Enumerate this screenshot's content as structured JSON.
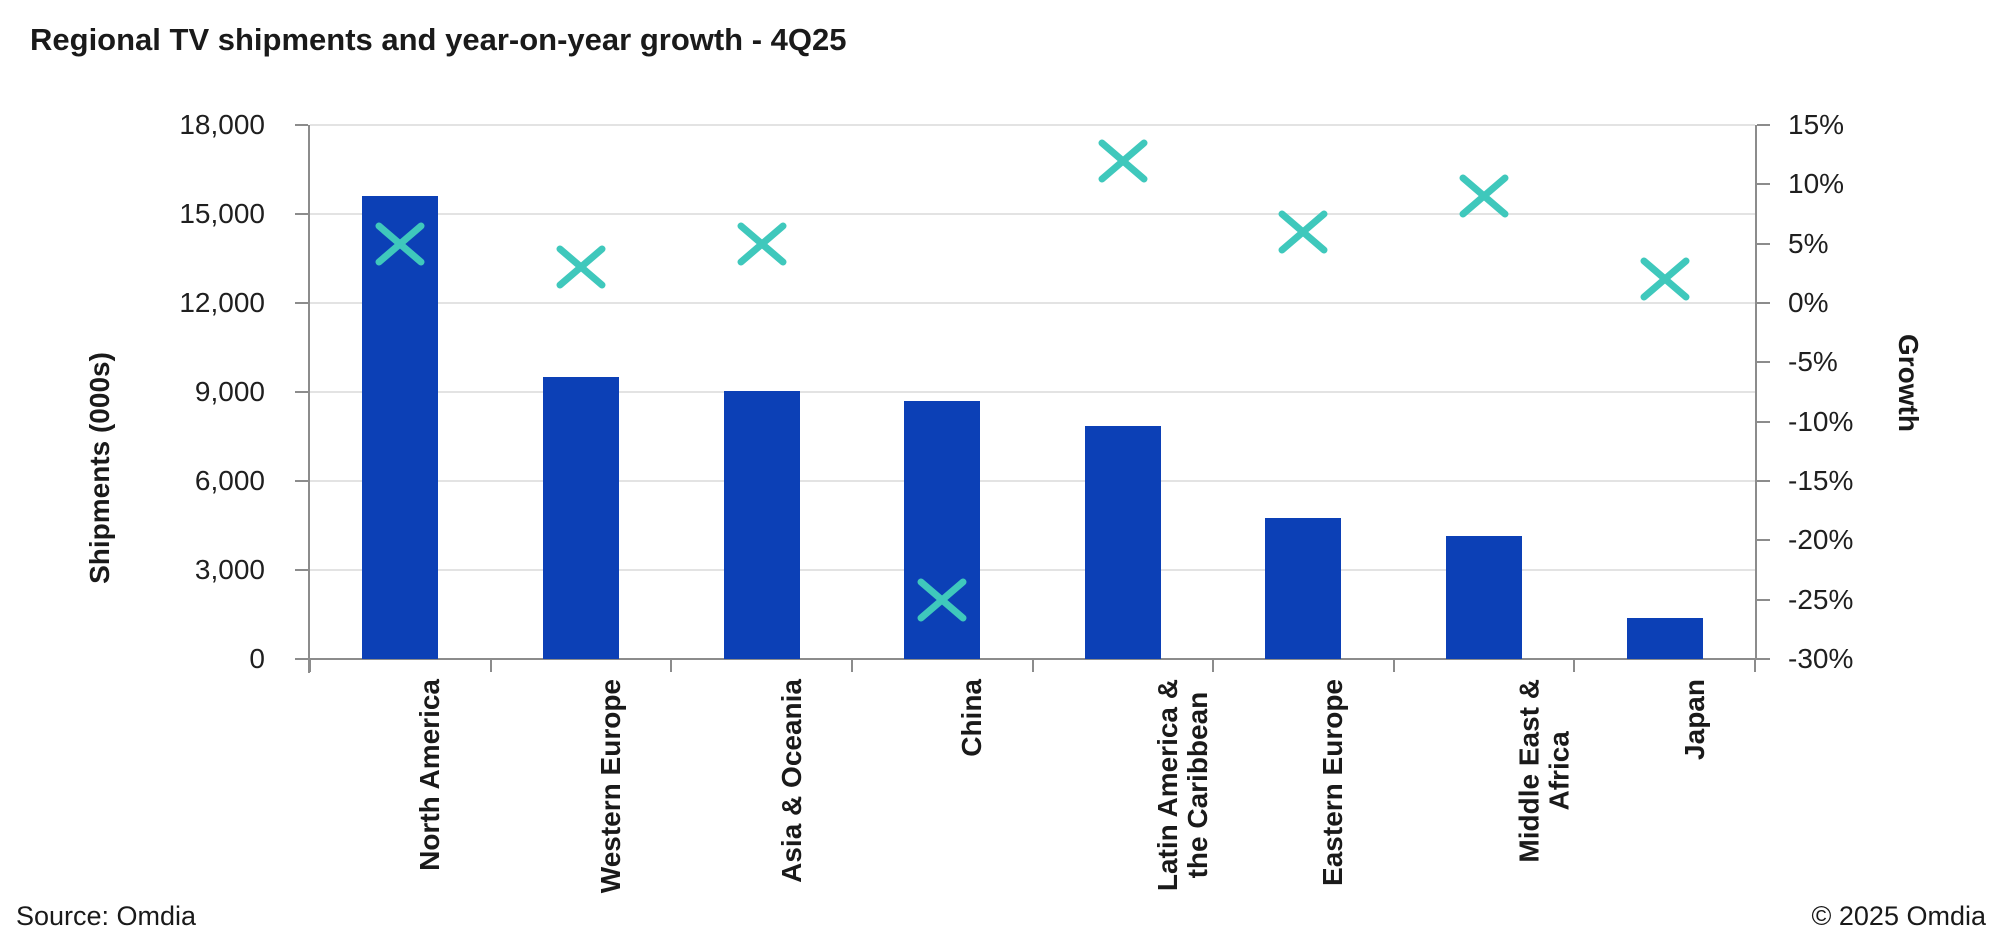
{
  "title": "Regional TV shipments and year-on-year growth - 4Q25",
  "footer": {
    "source": "Source: Omdia",
    "copyright": "© 2025 Omdia"
  },
  "colors": {
    "bar": "#0C40B6",
    "marker": "#3FC8BC",
    "gridline": "#E3E3E3",
    "axis": "#8C8C8C",
    "text": "#1A1A1A"
  },
  "chart_data": {
    "type": "bar",
    "subtype": "combo-bar-and-scatter-x-markers",
    "title": "Regional TV shipments and year-on-year growth - 4Q25",
    "categories": [
      "North America",
      "Western Europe",
      "Asia & Oceania",
      "China",
      "Latin America & the Caribbean",
      "Eastern Europe",
      "Middle East & Africa",
      "Japan"
    ],
    "category_lines": [
      [
        "North America"
      ],
      [
        "Western Europe"
      ],
      [
        "Asia & Oceania"
      ],
      [
        "China"
      ],
      [
        "Latin America &",
        "the Caribbean"
      ],
      [
        "Eastern Europe"
      ],
      [
        "Middle East &",
        "Africa"
      ],
      [
        "Japan"
      ]
    ],
    "series": [
      {
        "name": "Shipments (000s)",
        "type": "bar",
        "axis": "left",
        "color": "#0C40B6",
        "values": [
          15600,
          9500,
          9050,
          8700,
          7850,
          4750,
          4150,
          1400
        ]
      },
      {
        "name": "Growth",
        "type": "scatter",
        "marker": "x-cross",
        "axis": "right",
        "color": "#3FC8BC",
        "values": [
          5,
          3,
          5,
          -25,
          12,
          6,
          9,
          2
        ]
      }
    ],
    "left_axis": {
      "label": "Shipments (000s)",
      "min": 0,
      "max": 18000,
      "step": 3000,
      "tick_labels": [
        "18,000",
        "15,000",
        "12,000",
        "9,000",
        "6,000",
        "3,000",
        "0"
      ]
    },
    "right_axis": {
      "label": "Growth",
      "min": -30,
      "max": 15,
      "step": 5,
      "tick_labels": [
        "15%",
        "10%",
        "5%",
        "0%",
        "-5%",
        "-10%",
        "-15%",
        "-20%",
        "-25%",
        "-30%"
      ]
    },
    "grid": "horizontal-only",
    "legend": "none"
  }
}
